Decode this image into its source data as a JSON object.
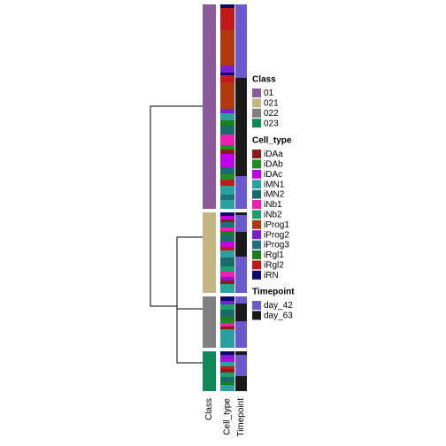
{
  "chart_data": {
    "type": "annotation-heatmap",
    "legends": [
      {
        "title": "Class",
        "items": [
          {
            "label": "01",
            "color": "#8a5a9a"
          },
          {
            "label": "021",
            "color": "#c4b585"
          },
          {
            "label": "022",
            "color": "#808080"
          },
          {
            "label": "023",
            "color": "#0e8a5a"
          }
        ]
      },
      {
        "title": "Cell_type",
        "items": [
          {
            "label": "iDAa",
            "color": "#8b1a1a"
          },
          {
            "label": "iDAb",
            "color": "#228b22"
          },
          {
            "label": "iDAc",
            "color": "#c000e8"
          },
          {
            "label": "iMN1",
            "color": "#2aa0a0"
          },
          {
            "label": "iMN2",
            "color": "#1a6a6a"
          },
          {
            "label": "iNb1",
            "color": "#ee1fb0"
          },
          {
            "label": "iNb2",
            "color": "#1aa06a"
          },
          {
            "label": "iProg1",
            "color": "#b0380f"
          },
          {
            "label": "iProg2",
            "color": "#7a1fcf"
          },
          {
            "label": "iProg3",
            "color": "#1f6f80"
          },
          {
            "label": "iRgl1",
            "color": "#1a7f1a"
          },
          {
            "label": "iRgl2",
            "color": "#c01a1a"
          },
          {
            "label": "iRN",
            "color": "#0a0a6e"
          }
        ]
      },
      {
        "title": "Timepoint",
        "items": [
          {
            "label": "day_42",
            "color": "#6a5acd"
          },
          {
            "label": "day_63",
            "color": "#1a1a1a"
          }
        ]
      }
    ],
    "columns": [
      {
        "label": "Class",
        "legend": 0,
        "blocks": [
          [
            {
              "level": 0,
              "size": 231
            }
          ],
          [
            {
              "level": 1,
              "size": 91
            }
          ],
          [
            {
              "level": 2,
              "size": 58
            }
          ],
          [
            {
              "level": 3,
              "size": 45
            }
          ]
        ]
      },
      {
        "label": "Cell_type",
        "legend": 1,
        "blocks": [
          [
            {
              "level": 12,
              "size": 4
            },
            {
              "level": 11,
              "size": 25
            },
            {
              "level": 7,
              "size": 40
            },
            {
              "level": 8,
              "size": 8
            },
            {
              "level": 12,
              "size": 3
            },
            {
              "level": 11,
              "size": 8
            },
            {
              "level": 7,
              "size": 30
            },
            {
              "level": 8,
              "size": 5
            },
            {
              "level": 3,
              "size": 8
            },
            {
              "level": 10,
              "size": 6
            },
            {
              "level": 4,
              "size": 10
            },
            {
              "level": 5,
              "size": 12
            },
            {
              "level": 1,
              "size": 5
            },
            {
              "level": 0,
              "size": 5
            },
            {
              "level": 2,
              "size": 15
            },
            {
              "level": 4,
              "size": 8
            },
            {
              "level": 1,
              "size": 6
            },
            {
              "level": 11,
              "size": 7
            },
            {
              "level": 3,
              "size": 10
            },
            {
              "level": 9,
              "size": 6
            },
            {
              "level": 3,
              "size": 10
            }
          ],
          [
            {
              "level": 12,
              "size": 4
            },
            {
              "level": 2,
              "size": 4
            },
            {
              "level": 0,
              "size": 3
            },
            {
              "level": 9,
              "size": 6
            },
            {
              "level": 5,
              "size": 4
            },
            {
              "level": 10,
              "size": 4
            },
            {
              "level": 4,
              "size": 8
            },
            {
              "level": 2,
              "size": 6
            },
            {
              "level": 11,
              "size": 4
            },
            {
              "level": 3,
              "size": 8
            },
            {
              "level": 4,
              "size": 10
            },
            {
              "level": 6,
              "size": 6
            },
            {
              "level": 5,
              "size": 6
            },
            {
              "level": 8,
              "size": 4
            },
            {
              "level": 0,
              "size": 4
            },
            {
              "level": 3,
              "size": 10
            }
          ],
          [
            {
              "level": 12,
              "size": 5
            },
            {
              "level": 8,
              "size": 4
            },
            {
              "level": 6,
              "size": 6
            },
            {
              "level": 4,
              "size": 8
            },
            {
              "level": 10,
              "size": 4
            },
            {
              "level": 1,
              "size": 3
            },
            {
              "level": 5,
              "size": 4
            },
            {
              "level": 0,
              "size": 3
            },
            {
              "level": 3,
              "size": 21
            }
          ],
          [
            {
              "level": 12,
              "size": 4
            },
            {
              "level": 8,
              "size": 4
            },
            {
              "level": 2,
              "size": 4
            },
            {
              "level": 3,
              "size": 5
            },
            {
              "level": 11,
              "size": 3
            },
            {
              "level": 0,
              "size": 4
            },
            {
              "level": 6,
              "size": 5
            },
            {
              "level": 4,
              "size": 6
            },
            {
              "level": 10,
              "size": 3
            },
            {
              "level": 3,
              "size": 7
            }
          ]
        ]
      },
      {
        "label": "Timepoint",
        "legend": 2,
        "blocks": [
          [
            {
              "level": 0,
              "size": 83
            },
            {
              "level": 1,
              "size": 111
            },
            {
              "level": 0,
              "size": 37
            }
          ],
          [
            {
              "level": 1,
              "size": 3
            },
            {
              "level": 0,
              "size": 19
            },
            {
              "level": 1,
              "size": 28
            },
            {
              "level": 0,
              "size": 41
            }
          ],
          [
            {
              "level": 0,
              "size": 8
            },
            {
              "level": 1,
              "size": 20
            },
            {
              "level": 0,
              "size": 30
            }
          ],
          [
            {
              "level": 1,
              "size": 4
            },
            {
              "level": 0,
              "size": 24
            },
            {
              "level": 1,
              "size": 17
            }
          ]
        ]
      }
    ]
  }
}
